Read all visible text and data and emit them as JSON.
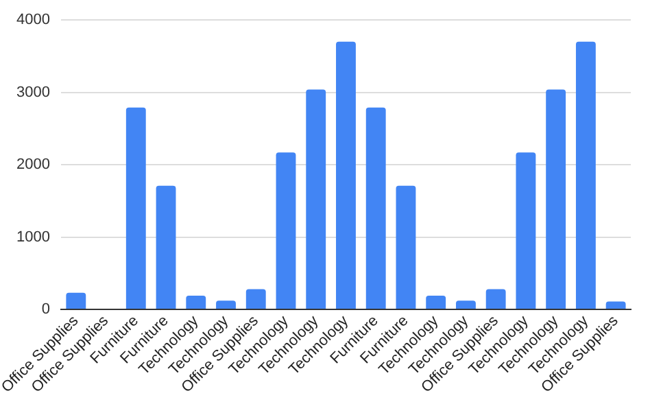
{
  "chart_data": {
    "type": "bar",
    "categories": [
      "Office Supplies",
      "Office Supplies",
      "Furniture",
      "Furniture",
      "Technology",
      "Technology",
      "Office Supplies",
      "Technology",
      "Technology",
      "Technology",
      "Furniture",
      "Furniture",
      "Technology",
      "Technology",
      "Office Supplies",
      "Technology",
      "Technology",
      "Technology",
      "Office Supplies"
    ],
    "values": [
      230,
      0,
      2790,
      1710,
      190,
      120,
      280,
      2170,
      3040,
      3700,
      2790,
      1710,
      190,
      120,
      280,
      2170,
      3040,
      3700,
      110
    ],
    "color": "#4285f4",
    "ylim": [
      0,
      4000
    ],
    "yticks": [
      0,
      1000,
      2000,
      3000,
      4000
    ],
    "grid": "y"
  }
}
